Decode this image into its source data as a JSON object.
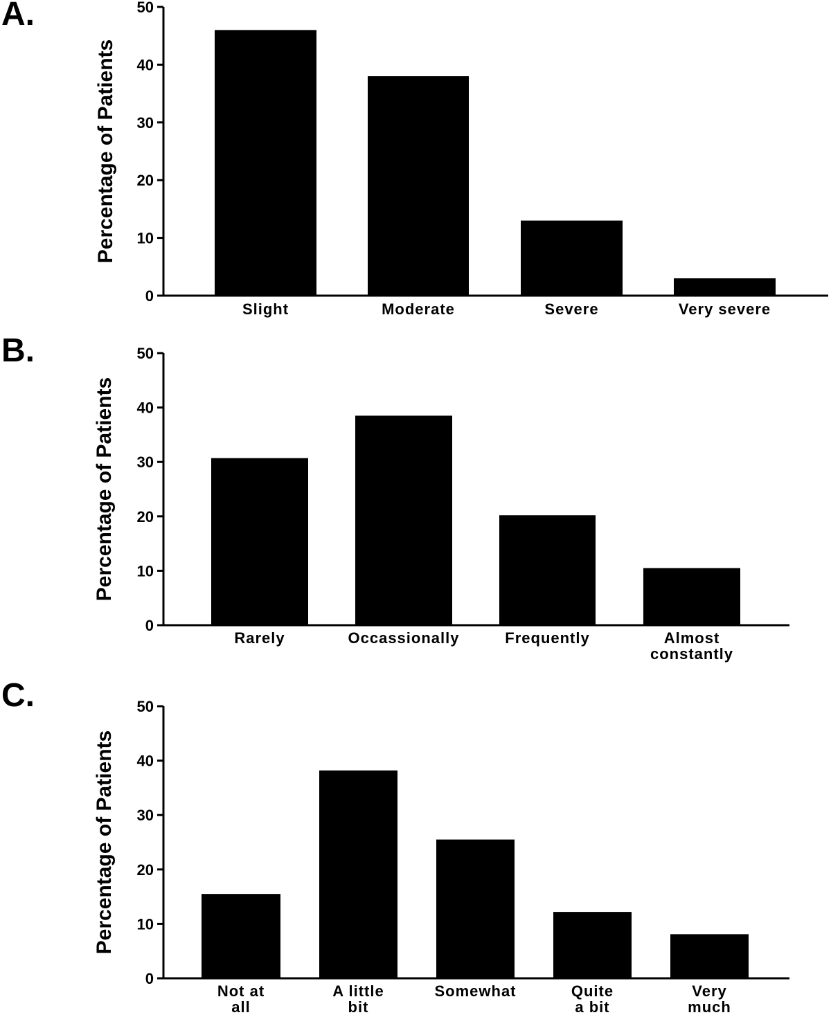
{
  "chart_data": [
    {
      "type": "bar",
      "panel": "A.",
      "ylabel": "Percentage of Patients",
      "ylim": [
        0,
        50
      ],
      "yticks": [
        "0",
        "10",
        "20",
        "30",
        "40",
        "50"
      ],
      "categories": [
        [
          "Slight"
        ],
        [
          "Moderate"
        ],
        [
          "Severe"
        ],
        [
          "Very severe"
        ]
      ],
      "values": [
        46,
        38,
        13,
        3
      ],
      "color": "#000000"
    },
    {
      "type": "bar",
      "panel": "B.",
      "ylabel": "Percentage of Patients",
      "ylim": [
        0,
        50
      ],
      "yticks": [
        "0",
        "10",
        "20",
        "30",
        "40",
        "50"
      ],
      "categories": [
        [
          "Rarely"
        ],
        [
          "Occassionally"
        ],
        [
          "Frequently"
        ],
        [
          "Almost",
          "constantly"
        ]
      ],
      "values": [
        30.7,
        38.5,
        20.2,
        10.5
      ],
      "color": "#000000"
    },
    {
      "type": "bar",
      "panel": "C.",
      "ylabel": "Percentage of Patients",
      "ylim": [
        0,
        50
      ],
      "yticks": [
        "0",
        "10",
        "20",
        "30",
        "40",
        "50"
      ],
      "categories": [
        [
          "Not at",
          "all"
        ],
        [
          "A little",
          "bit"
        ],
        [
          "Somewhat"
        ],
        [
          "Quite",
          "a bit"
        ],
        [
          "Very",
          "much"
        ]
      ],
      "values": [
        15.5,
        38.2,
        25.5,
        12.2,
        8.1
      ],
      "color": "#000000"
    }
  ]
}
